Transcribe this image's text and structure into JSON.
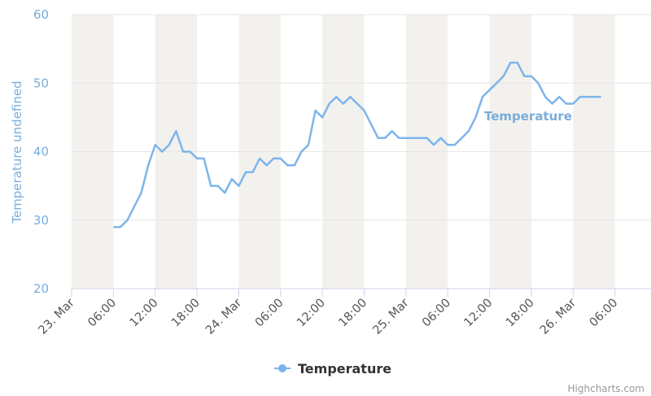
{
  "chart_data": {
    "type": "line",
    "ylabel": "Temperature undefined",
    "ylim": [
      20,
      60
    ],
    "yticks": [
      "20",
      "30",
      "40",
      "50",
      "60"
    ],
    "xticks": [
      {
        "label": "23. Mar",
        "hours": 0
      },
      {
        "label": "06:00",
        "hours": 6
      },
      {
        "label": "12:00",
        "hours": 12
      },
      {
        "label": "18:00",
        "hours": 18
      },
      {
        "label": "24. Mar",
        "hours": 24
      },
      {
        "label": "06:00",
        "hours": 30
      },
      {
        "label": "12:00",
        "hours": 36
      },
      {
        "label": "18:00",
        "hours": 42
      },
      {
        "label": "25. Mar",
        "hours": 48
      },
      {
        "label": "06:00",
        "hours": 54
      },
      {
        "label": "12:00",
        "hours": 60
      },
      {
        "label": "18:00",
        "hours": 66
      },
      {
        "label": "26. Mar",
        "hours": 72
      },
      {
        "label": "06:00",
        "hours": 78
      }
    ],
    "night_bands": [
      [
        0,
        6
      ],
      [
        12,
        18
      ],
      [
        24,
        30
      ],
      [
        36,
        42
      ],
      [
        48,
        54
      ],
      [
        60,
        66
      ],
      [
        72,
        78
      ]
    ],
    "grid": true,
    "series": [
      {
        "name": "Temperature",
        "color": "#7cb5ec",
        "inline_label": "Temperature",
        "points": [
          [
            6,
            29
          ],
          [
            7,
            29
          ],
          [
            8,
            30
          ],
          [
            9,
            32
          ],
          [
            10,
            34
          ],
          [
            11,
            38
          ],
          [
            12,
            41
          ],
          [
            13,
            40
          ],
          [
            14,
            41
          ],
          [
            15,
            43
          ],
          [
            16,
            40
          ],
          [
            17,
            40
          ],
          [
            18,
            39
          ],
          [
            19,
            39
          ],
          [
            20,
            35
          ],
          [
            21,
            35
          ],
          [
            22,
            34
          ],
          [
            23,
            36
          ],
          [
            24,
            35
          ],
          [
            25,
            37
          ],
          [
            26,
            37
          ],
          [
            27,
            39
          ],
          [
            28,
            38
          ],
          [
            29,
            39
          ],
          [
            30,
            39
          ],
          [
            31,
            38
          ],
          [
            32,
            38
          ],
          [
            33,
            40
          ],
          [
            34,
            41
          ],
          [
            35,
            46
          ],
          [
            36,
            45
          ],
          [
            37,
            47
          ],
          [
            38,
            48
          ],
          [
            39,
            47
          ],
          [
            40,
            48
          ],
          [
            41,
            47
          ],
          [
            42,
            46
          ],
          [
            43,
            44
          ],
          [
            44,
            42
          ],
          [
            45,
            42
          ],
          [
            46,
            43
          ],
          [
            47,
            42
          ],
          [
            48,
            42
          ],
          [
            49,
            42
          ],
          [
            50,
            42
          ],
          [
            51,
            42
          ],
          [
            52,
            41
          ],
          [
            53,
            42
          ],
          [
            54,
            41
          ],
          [
            55,
            41
          ],
          [
            56,
            42
          ],
          [
            57,
            43
          ],
          [
            58,
            45
          ],
          [
            59,
            48
          ],
          [
            60,
            49
          ],
          [
            61,
            50
          ],
          [
            62,
            51
          ],
          [
            63,
            53
          ],
          [
            64,
            53
          ],
          [
            65,
            51
          ],
          [
            66,
            51
          ],
          [
            67,
            50
          ],
          [
            68,
            48
          ],
          [
            69,
            47
          ],
          [
            70,
            48
          ],
          [
            71,
            47
          ],
          [
            72,
            47
          ],
          [
            73,
            48
          ],
          [
            74,
            48
          ],
          [
            75,
            48
          ],
          [
            76,
            48
          ]
        ]
      }
    ]
  },
  "legend": {
    "label": "Temperature"
  },
  "credits": "Highcharts.com"
}
